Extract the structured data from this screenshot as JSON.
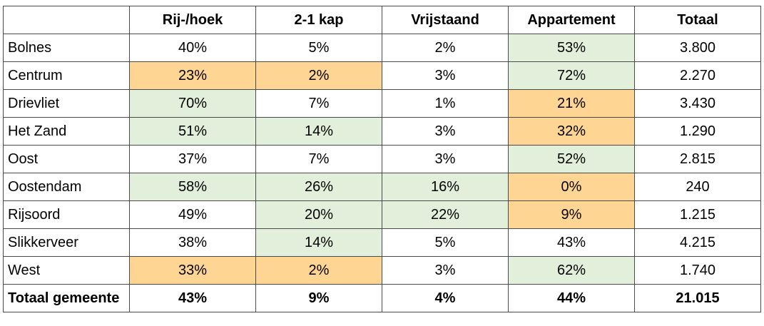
{
  "table": {
    "headers": [
      "",
      "Rij-/hoek",
      "2-1 kap",
      "Vrijstaand",
      "Appartement",
      "Totaal"
    ],
    "rows": [
      {
        "name": "Bolnes",
        "cells": [
          "40%",
          "5%",
          "2%",
          "53%",
          "3.800"
        ],
        "highlights": [
          "",
          "",
          "",
          "green",
          ""
        ]
      },
      {
        "name": "Centrum",
        "cells": [
          "23%",
          "2%",
          "3%",
          "72%",
          "2.270"
        ],
        "highlights": [
          "orange",
          "orange",
          "",
          "green",
          ""
        ]
      },
      {
        "name": "Drievliet",
        "cells": [
          "70%",
          "7%",
          "1%",
          "21%",
          "3.430"
        ],
        "highlights": [
          "green",
          "",
          "",
          "orange",
          ""
        ]
      },
      {
        "name": "Het Zand",
        "cells": [
          "51%",
          "14%",
          "3%",
          "32%",
          "1.290"
        ],
        "highlights": [
          "green",
          "green",
          "",
          "orange",
          ""
        ]
      },
      {
        "name": "Oost",
        "cells": [
          "37%",
          "7%",
          "3%",
          "52%",
          "2.815"
        ],
        "highlights": [
          "",
          "",
          "",
          "green",
          ""
        ]
      },
      {
        "name": "Oostendam",
        "cells": [
          "58%",
          "26%",
          "16%",
          "0%",
          "240"
        ],
        "highlights": [
          "green",
          "green",
          "green",
          "orange",
          ""
        ]
      },
      {
        "name": "Rijsoord",
        "cells": [
          "49%",
          "20%",
          "22%",
          "9%",
          "1.215"
        ],
        "highlights": [
          "",
          "green",
          "green",
          "orange",
          ""
        ]
      },
      {
        "name": "Slikkerveer",
        "cells": [
          "38%",
          "14%",
          "5%",
          "43%",
          "4.215"
        ],
        "highlights": [
          "",
          "green",
          "",
          "",
          ""
        ]
      },
      {
        "name": "West",
        "cells": [
          "33%",
          "2%",
          "3%",
          "62%",
          "1.740"
        ],
        "highlights": [
          "orange",
          "orange",
          "",
          "green",
          ""
        ]
      }
    ],
    "total": {
      "name": "Totaal gemeente",
      "cells": [
        "43%",
        "9%",
        "4%",
        "44%",
        "21.015"
      ]
    },
    "colors": {
      "green": "#e2efda",
      "orange": "#ffd594",
      "border": "#4a4a4a"
    }
  }
}
